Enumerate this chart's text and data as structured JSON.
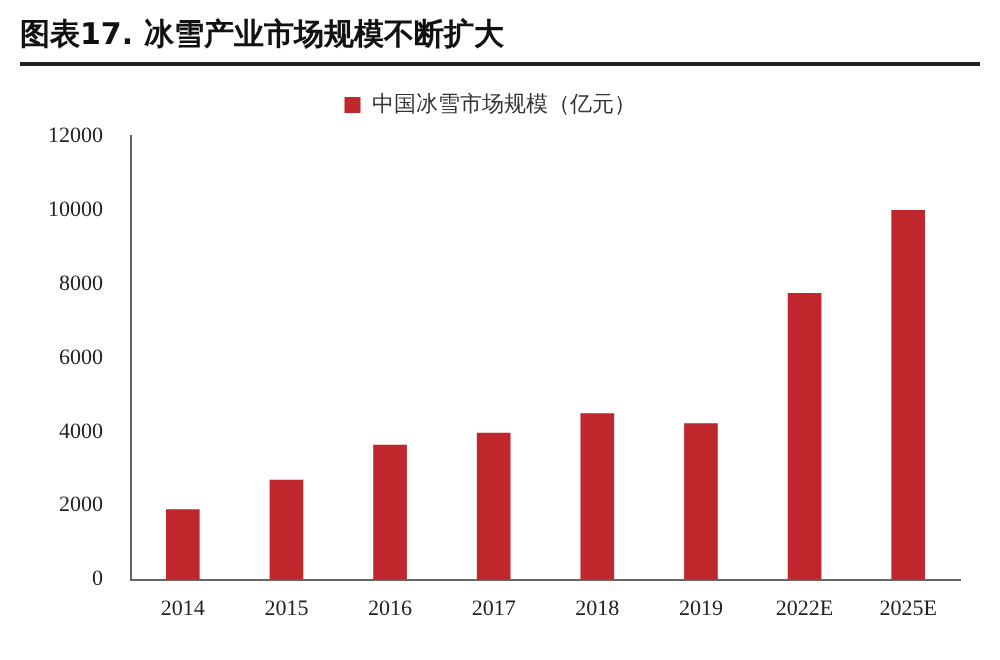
{
  "chart_data": {
    "type": "bar",
    "title": "图表17. 冰雪产业市场规模不断扩大",
    "categories": [
      "2014",
      "2015",
      "2016",
      "2017",
      "2018",
      "2019",
      "2022E",
      "2025E"
    ],
    "series": [
      {
        "name": "中国冰雪市场规模（亿元）",
        "color": "#c0272d",
        "values": [
          1900,
          2700,
          3650,
          3970,
          4500,
          4230,
          7750,
          10000
        ]
      }
    ],
    "ylim": [
      0,
      12000
    ],
    "yticks": [
      0,
      2000,
      4000,
      6000,
      8000,
      10000,
      12000
    ],
    "grid": false,
    "legend": "top"
  }
}
